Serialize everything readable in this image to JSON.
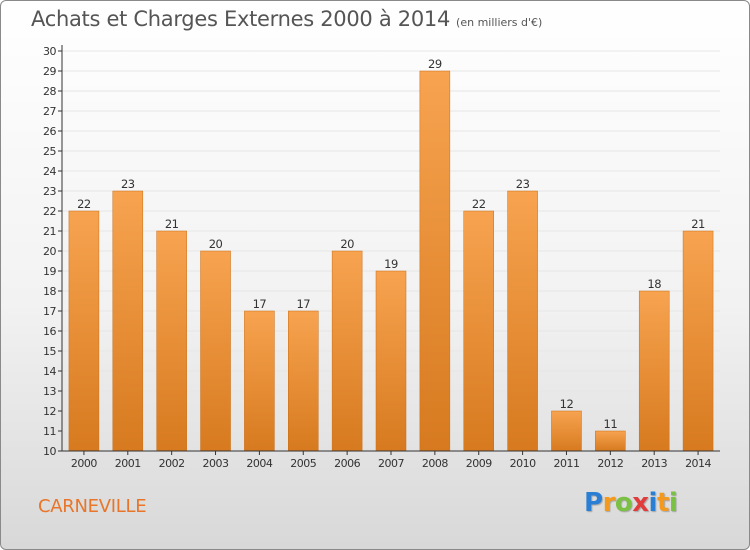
{
  "header": {
    "title": "Achats et Charges Externes 2000 à 2014",
    "unit": "(en milliers d'€)"
  },
  "location": "CARNEVILLE",
  "logo": {
    "text": "Proxiti",
    "letters": [
      {
        "ch": "P",
        "color": "#2a7fd4"
      },
      {
        "ch": "r",
        "color": "#f39a1e"
      },
      {
        "ch": "o",
        "color": "#7ac043"
      },
      {
        "ch": "x",
        "color": "#e23b3b"
      },
      {
        "ch": "i",
        "color": "#2a7fd4"
      },
      {
        "ch": "t",
        "color": "#f39a1e"
      },
      {
        "ch": "i",
        "color": "#7ac043"
      }
    ]
  },
  "colors": {
    "bar_light": "#f7a350",
    "bar_dark": "#d77a1f",
    "axis": "#333333",
    "grid": "#e6e6e6"
  },
  "chart_data": {
    "type": "bar",
    "categories": [
      "2000",
      "2001",
      "2002",
      "2003",
      "2004",
      "2005",
      "2006",
      "2007",
      "2008",
      "2009",
      "2010",
      "2011",
      "2012",
      "2013",
      "2014"
    ],
    "values": [
      22,
      23,
      21,
      20,
      17,
      17,
      20,
      19,
      29,
      22,
      23,
      12,
      11,
      18,
      21
    ],
    "ylim": [
      10,
      30
    ],
    "yticks": [
      10,
      11,
      12,
      13,
      14,
      15,
      16,
      17,
      18,
      19,
      20,
      21,
      22,
      23,
      24,
      25,
      26,
      27,
      28,
      29,
      30
    ],
    "grid": true,
    "data_labels": true
  }
}
